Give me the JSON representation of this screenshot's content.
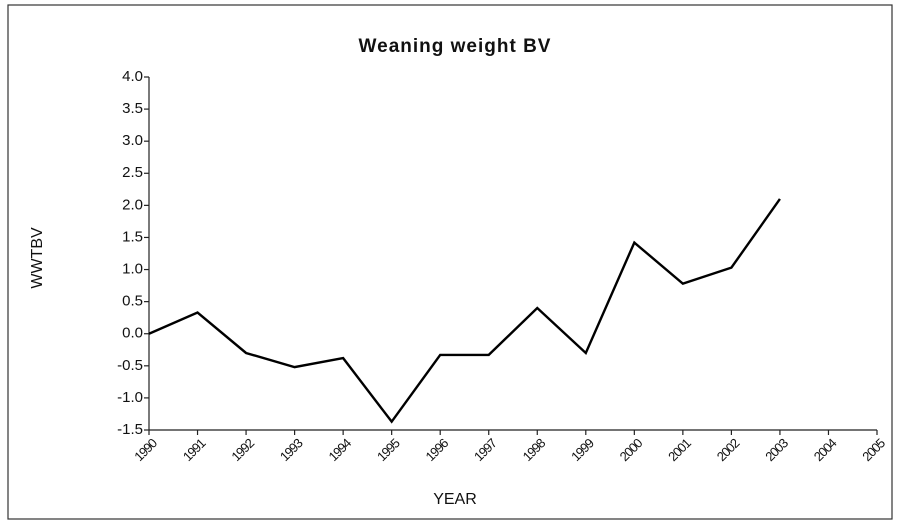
{
  "chart_data": {
    "type": "line",
    "title": "Weaning weight BV",
    "xlabel": "YEAR",
    "ylabel": "WWTBV",
    "x": [
      1990,
      1991,
      1992,
      1993,
      1994,
      1995,
      1996,
      1997,
      1998,
      1999,
      2000,
      2001,
      2002,
      2003
    ],
    "values": [
      0.0,
      0.33,
      -0.3,
      -0.52,
      -0.38,
      -1.37,
      -0.33,
      -0.33,
      0.4,
      -0.3,
      1.42,
      0.78,
      1.03,
      2.1
    ],
    "color": "#000000",
    "xlim": [
      1990,
      2005
    ],
    "xticks": [
      1990,
      1991,
      1992,
      1993,
      1994,
      1995,
      1996,
      1997,
      1998,
      1999,
      2000,
      2001,
      2002,
      2003,
      2004,
      2005
    ],
    "ylim": [
      -1.5,
      4.0
    ],
    "yticks": [
      {
        "value": -1.5,
        "label": "-1.5"
      },
      {
        "value": -1.0,
        "label": "-1.0"
      },
      {
        "value": -0.5,
        "label": "-0.5"
      },
      {
        "value": 0,
        "label": "0.0"
      },
      {
        "value": 0.5,
        "label": "0.5"
      },
      {
        "value": 1.0,
        "label": "1.0"
      },
      {
        "value": 1.5,
        "label": "1.5"
      },
      {
        "value": 2.0,
        "label": "2.0"
      },
      {
        "value": 2.5,
        "label": "2.5"
      },
      {
        "value": 3.0,
        "label": "3.0"
      },
      {
        "value": 3.5,
        "label": "3.5"
      },
      {
        "value": 4.0,
        "label": "4.0"
      }
    ],
    "grid": false
  }
}
